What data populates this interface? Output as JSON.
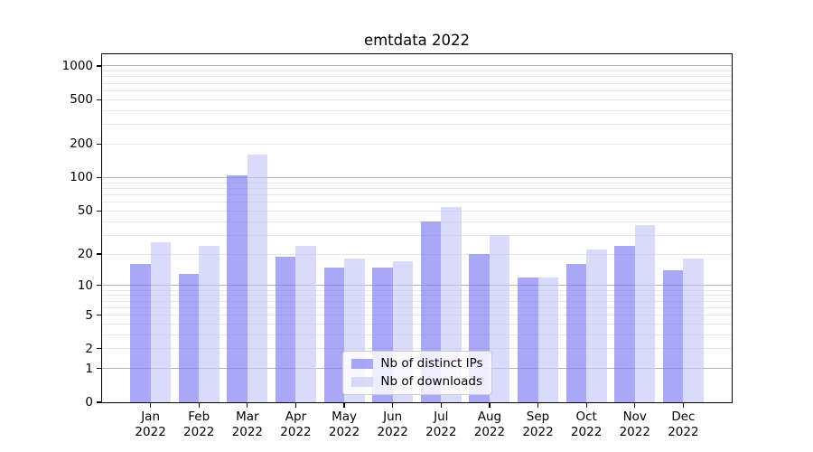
{
  "title": "emtdata 2022",
  "legend": {
    "position": "lower center",
    "items": [
      {
        "label": "Nb of distinct IPs",
        "color": "#7f7ff3",
        "alpha": 0.68
      },
      {
        "label": "Nb of downloads",
        "color": "#c9c9f8",
        "alpha": 0.68
      }
    ]
  },
  "chart_data": {
    "type": "bar",
    "title": "emtdata 2022",
    "scale": "log10(1+y)",
    "categories": [
      "Jan 2022",
      "Feb 2022",
      "Mar 2022",
      "Apr 2022",
      "May 2022",
      "Jun 2022",
      "Jul 2022",
      "Aug 2022",
      "Sep 2022",
      "Oct 2022",
      "Nov 2022",
      "Dec 2022"
    ],
    "series": [
      {
        "name": "Nb of distinct IPs",
        "color": "#7f7ff3",
        "alpha": 0.68,
        "values": [
          16,
          13,
          105,
          19,
          15,
          15,
          40,
          20,
          12,
          16,
          24,
          14
        ]
      },
      {
        "name": "Nb of downloads",
        "color": "#c9c9f8",
        "alpha": 0.68,
        "values": [
          26,
          24,
          160,
          24,
          18,
          17,
          54,
          30,
          12,
          22,
          37,
          18
        ]
      }
    ],
    "y_ticks": [
      0,
      1,
      2,
      5,
      10,
      20,
      50,
      100,
      200,
      500,
      1000
    ],
    "ylim": [
      0,
      1273
    ],
    "gridlines": {
      "major": [
        1,
        10,
        100,
        1000
      ],
      "minor": [
        2,
        3,
        4,
        5,
        6,
        7,
        8,
        9,
        20,
        30,
        40,
        50,
        60,
        70,
        80,
        90,
        200,
        300,
        400,
        500,
        600,
        700,
        800,
        900
      ]
    },
    "grid_colors": {
      "major": "#b3b3b3",
      "minor": "#e7e7e7"
    },
    "legend_position": "lower center",
    "xlabel": "",
    "ylabel": ""
  }
}
